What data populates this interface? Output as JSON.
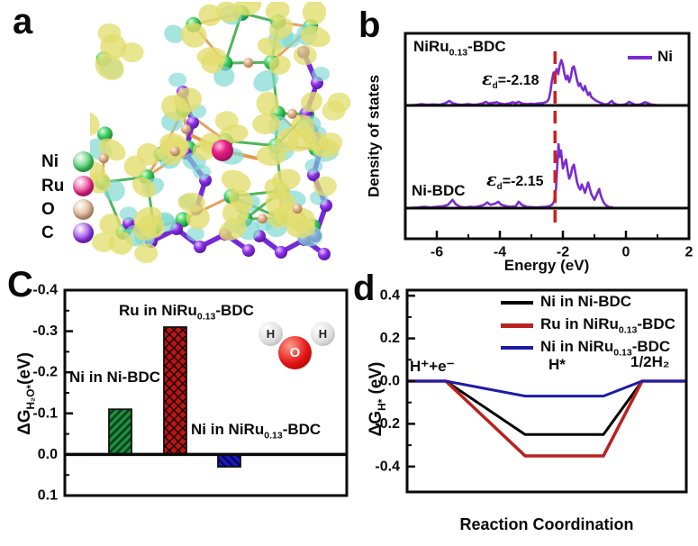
{
  "panels": {
    "a": {
      "label": "a",
      "legend": [
        {
          "symbol": "Ni",
          "color": "#3ecb5e"
        },
        {
          "symbol": "Ru",
          "color": "#e81f86"
        },
        {
          "symbol": "O",
          "color": "#dcae88"
        },
        {
          "symbol": "C",
          "color": "#8d2fe8"
        }
      ],
      "art": {
        "iso_pos": "#e2dd6e",
        "iso_neg": "#7fd9d2",
        "bond": "#e09a50",
        "bond2": "#3fae4a",
        "carbon": "#6d1fd4"
      }
    },
    "b": {
      "label": "b",
      "ylabel": "Density of states",
      "xlabel": "Energy (eV)",
      "legend_label": "Ni",
      "top_title": {
        "pre": "NiRu",
        "sub": "0.13",
        "post": "-BDC"
      },
      "bottom_title": "Ni-BDC",
      "ed_top": {
        "symbol": "ε",
        "sub": "d",
        "value": "=-2.18"
      },
      "ed_bottom": {
        "symbol": "ε",
        "sub": "d",
        "value": "=-2.15"
      }
    },
    "c": {
      "label": "C",
      "ylabel": {
        "pre": "ΔG",
        "sub": "H₂O*",
        "post": "(eV)"
      },
      "bar_labels": [
        {
          "text": "Ni in Ni-BDC"
        },
        {
          "pre": "Ru in NiRu",
          "sub": "0.13",
          "post": "-BDC"
        },
        {
          "pre": "Ni in NiRu",
          "sub": "0.13",
          "post": "-BDC"
        }
      ],
      "water": {
        "h1": "H",
        "o": "O",
        "h2": "H"
      }
    },
    "d": {
      "label": "d",
      "ylabel": {
        "pre": "ΔG",
        "sub": "H*",
        "post": " (eV)"
      },
      "xlabel": "Reaction Coordination",
      "legend": [
        {
          "pre": "Ni in Ni-BDC",
          "sub": "",
          "post": ""
        },
        {
          "pre": "Ru in NiRu",
          "sub": "0.13",
          "post": "-BDC"
        },
        {
          "pre": "Ni in NiRu",
          "sub": "0.13",
          "post": "-BDC"
        }
      ],
      "states": {
        "left": "H⁺+e⁻",
        "mid": "H*",
        "right": "1/2H₂"
      }
    }
  },
  "chart_data": [
    {
      "id": "b",
      "type": "line",
      "title": "Ni d-band density of states",
      "xlabel": "Energy (eV)",
      "ylabel": "Density of states",
      "x_range": [
        -7,
        2
      ],
      "x_ticks": [
        "-6",
        "-4",
        "-2",
        "0",
        "2"
      ],
      "legend": [
        {
          "label": "Ni",
          "color": "#7b2bd0"
        }
      ],
      "d_band_line_x": -2.25,
      "d_band_line_color": "#cf1f1f",
      "annotations": [
        {
          "panel": "NiRu0.13-BDC",
          "text": "εd=-2.18"
        },
        {
          "panel": "Ni-BDC",
          "text": "εd=-2.15"
        }
      ],
      "series": [
        {
          "name": "NiRu0.13-BDC Ni",
          "points": [
            [
              -7,
              0
            ],
            [
              -6.7,
              0.005
            ],
            [
              -6.5,
              0.02
            ],
            [
              -6.3,
              0.01
            ],
            [
              -6.1,
              0.015
            ],
            [
              -5.9,
              0.01
            ],
            [
              -5.75,
              0.03
            ],
            [
              -5.6,
              0.07
            ],
            [
              -5.5,
              0.035
            ],
            [
              -5.35,
              0.015
            ],
            [
              -5.2,
              0.01
            ],
            [
              -5,
              0.02
            ],
            [
              -4.85,
              0.01
            ],
            [
              -4.7,
              0.015
            ],
            [
              -4.55,
              0.03
            ],
            [
              -4.45,
              0.055
            ],
            [
              -4.35,
              0.03
            ],
            [
              -4.2,
              0.04
            ],
            [
              -4.1,
              0.05
            ],
            [
              -4,
              0.03
            ],
            [
              -3.85,
              0.02
            ],
            [
              -3.7,
              0.03
            ],
            [
              -3.6,
              0.05
            ],
            [
              -3.5,
              0.035
            ],
            [
              -3.4,
              0.055
            ],
            [
              -3.3,
              0.03
            ],
            [
              -3.15,
              0.02
            ],
            [
              -3,
              0.025
            ],
            [
              -2.9,
              0.02
            ],
            [
              -2.8,
              0.03
            ],
            [
              -2.7,
              0.035
            ],
            [
              -2.6,
              0.04
            ],
            [
              -2.5,
              0.06
            ],
            [
              -2.45,
              0.1
            ],
            [
              -2.4,
              0.2
            ],
            [
              -2.35,
              0.38
            ],
            [
              -2.3,
              0.5
            ],
            [
              -2.27,
              0.44
            ],
            [
              -2.2,
              0.56
            ],
            [
              -2.15,
              0.48
            ],
            [
              -2.1,
              0.62
            ],
            [
              -2.05,
              0.7
            ],
            [
              -2,
              0.62
            ],
            [
              -1.95,
              0.48
            ],
            [
              -1.9,
              0.4
            ],
            [
              -1.85,
              0.46
            ],
            [
              -1.8,
              0.36
            ],
            [
              -1.75,
              0.44
            ],
            [
              -1.7,
              0.58
            ],
            [
              -1.65,
              0.6
            ],
            [
              -1.6,
              0.5
            ],
            [
              -1.55,
              0.38
            ],
            [
              -1.5,
              0.3
            ],
            [
              -1.45,
              0.34
            ],
            [
              -1.4,
              0.27
            ],
            [
              -1.35,
              0.23
            ],
            [
              -1.3,
              0.3
            ],
            [
              -1.25,
              0.22
            ],
            [
              -1.2,
              0.16
            ],
            [
              -1.15,
              0.2
            ],
            [
              -1.1,
              0.13
            ],
            [
              -1,
              0.09
            ],
            [
              -0.9,
              0.06
            ],
            [
              -0.8,
              0.04
            ],
            [
              -0.7,
              0.02
            ],
            [
              -0.6,
              0.015
            ],
            [
              -0.5,
              0.05
            ],
            [
              -0.45,
              0.07
            ],
            [
              -0.4,
              0.04
            ],
            [
              -0.3,
              0.015
            ],
            [
              -0.2,
              0.005
            ],
            [
              -0.1,
              0.01
            ],
            [
              0,
              0.02
            ],
            [
              0.1,
              0.055
            ],
            [
              0.2,
              0.03
            ],
            [
              0.3,
              0.01
            ],
            [
              0.45,
              0.015
            ],
            [
              0.6,
              0.05
            ],
            [
              0.7,
              0.035
            ],
            [
              0.8,
              0.015
            ],
            [
              0.95,
              0.005
            ],
            [
              1.2,
              0
            ],
            [
              2,
              0
            ]
          ]
        },
        {
          "name": "Ni-BDC Ni",
          "points": [
            [
              -7,
              0
            ],
            [
              -6.6,
              0.01
            ],
            [
              -6.4,
              0.02
            ],
            [
              -6.2,
              0.01
            ],
            [
              -6,
              0.02
            ],
            [
              -5.8,
              0.03
            ],
            [
              -5.65,
              0.05
            ],
            [
              -5.5,
              0.13
            ],
            [
              -5.4,
              0.06
            ],
            [
              -5.25,
              0.02
            ],
            [
              -5.1,
              0.01
            ],
            [
              -4.95,
              0.02
            ],
            [
              -4.8,
              0.015
            ],
            [
              -4.65,
              0.03
            ],
            [
              -4.5,
              0.05
            ],
            [
              -4.4,
              0.09
            ],
            [
              -4.3,
              0.05
            ],
            [
              -4.15,
              0.07
            ],
            [
              -4.05,
              0.1
            ],
            [
              -3.95,
              0.05
            ],
            [
              -3.8,
              0.03
            ],
            [
              -3.65,
              0.02
            ],
            [
              -3.5,
              0.03
            ],
            [
              -3.4,
              0.1
            ],
            [
              -3.3,
              0.05
            ],
            [
              -3.15,
              0.02
            ],
            [
              -3,
              0.015
            ],
            [
              -2.85,
              0.01
            ],
            [
              -2.7,
              0.015
            ],
            [
              -2.55,
              0.02
            ],
            [
              -2.45,
              0.03
            ],
            [
              -2.35,
              0.05
            ],
            [
              -2.28,
              0.1
            ],
            [
              -2.22,
              0.3
            ],
            [
              -2.18,
              0.65
            ],
            [
              -2.14,
              1
            ],
            [
              -2.1,
              0.8
            ],
            [
              -2.06,
              0.9
            ],
            [
              -2,
              0.62
            ],
            [
              -1.95,
              0.7
            ],
            [
              -1.9,
              0.76
            ],
            [
              -1.85,
              0.58
            ],
            [
              -1.8,
              0.46
            ],
            [
              -1.75,
              0.52
            ],
            [
              -1.7,
              0.64
            ],
            [
              -1.65,
              0.68
            ],
            [
              -1.6,
              0.54
            ],
            [
              -1.55,
              0.4
            ],
            [
              -1.5,
              0.33
            ],
            [
              -1.45,
              0.29
            ],
            [
              -1.4,
              0.37
            ],
            [
              -1.35,
              0.31
            ],
            [
              -1.3,
              0.24
            ],
            [
              -1.25,
              0.32
            ],
            [
              -1.2,
              0.4
            ],
            [
              -1.15,
              0.31
            ],
            [
              -1.1,
              0.22
            ],
            [
              -1,
              0.13
            ],
            [
              -0.92,
              0.22
            ],
            [
              -0.85,
              0.3
            ],
            [
              -0.8,
              0.2
            ],
            [
              -0.72,
              0.1
            ],
            [
              -0.65,
              0.05
            ],
            [
              -0.55,
              0.02
            ],
            [
              -0.45,
              0.01
            ],
            [
              -0.35,
              0
            ],
            [
              0,
              0
            ],
            [
              2,
              0
            ]
          ]
        }
      ]
    },
    {
      "id": "c",
      "type": "bar",
      "ylabel": "ΔG_H2O* (eV)",
      "y_axis_inverted": true,
      "ylim": [
        -0.4,
        0.1
      ],
      "y_tick_labels": [
        "-0.4",
        "-0.3",
        "-0.2",
        "-0.1",
        "0.0",
        "0.1"
      ],
      "bars": [
        {
          "label": "Ni in Ni-BDC",
          "value": -0.11,
          "color": "#1f8f3f",
          "hatch": "diagonal"
        },
        {
          "label": "Ru in NiRu0.13-BDC",
          "value": -0.31,
          "color": "#bb1616",
          "hatch": "crosshatch"
        },
        {
          "label": "Ni in NiRu0.13-BDC",
          "value": 0.03,
          "color": "#1818c0",
          "hatch": "diagonal"
        }
      ]
    },
    {
      "id": "d",
      "type": "line",
      "xlabel": "Reaction Coordination",
      "ylabel": "ΔG_H* (eV)",
      "ylim": [
        -0.5,
        0.45
      ],
      "y_tick_labels": [
        "0.4",
        "0.2",
        "0.0",
        "-0.2",
        "-0.4"
      ],
      "states": [
        "H⁺+e⁻",
        "H*",
        "1/2H₂"
      ],
      "series": [
        {
          "name": "Ni in Ni-BDC",
          "color": "#000000",
          "values": [
            0,
            -0.25,
            0
          ]
        },
        {
          "name": "Ru in NiRu0.13-BDC",
          "color": "#b82220",
          "values": [
            0,
            -0.35,
            0
          ]
        },
        {
          "name": "Ni in NiRu0.13-BDC",
          "color": "#1c1ca6",
          "values": [
            0,
            -0.07,
            0
          ]
        }
      ]
    }
  ]
}
